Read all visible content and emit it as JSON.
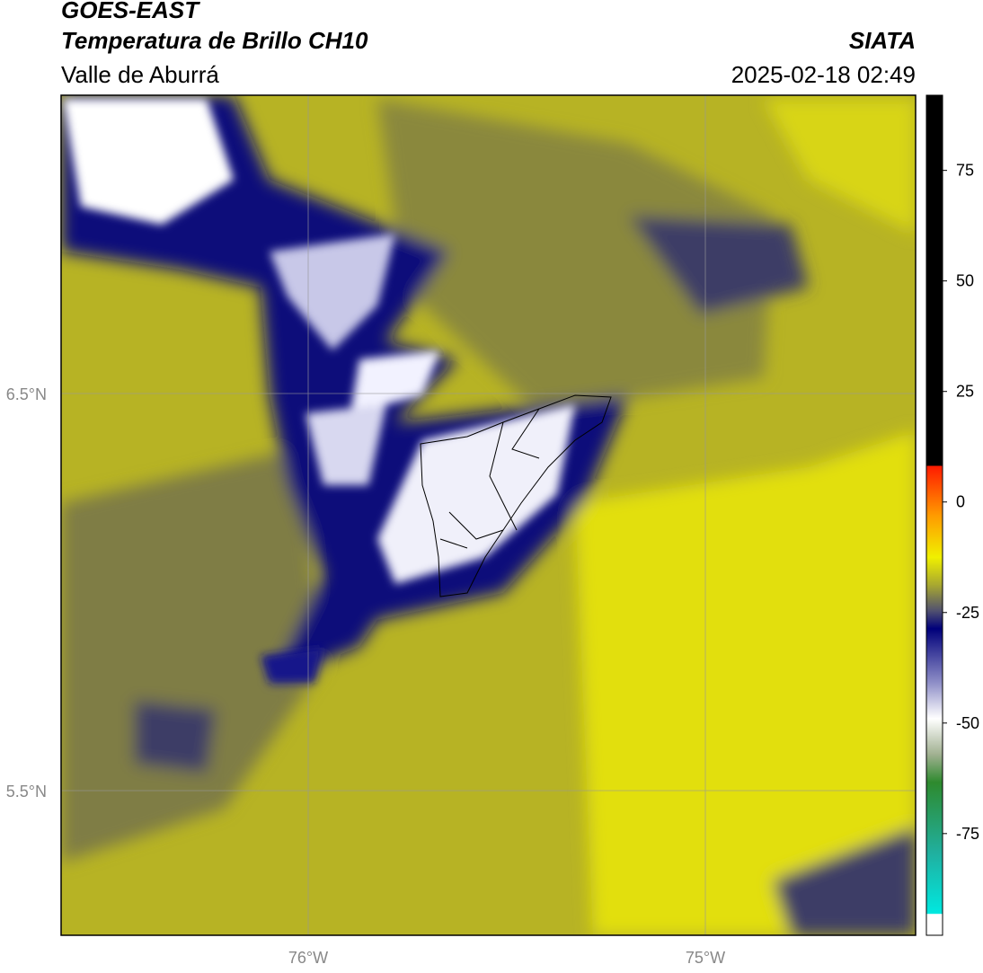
{
  "header": {
    "title": "GOES-EAST",
    "subtitle": "Temperatura de Brillo CH10",
    "region": "Valle de Aburrá",
    "source": "SIATA",
    "datetime": "2025-02-18 02:49"
  },
  "map": {
    "lat_labels": [
      "6.5°N",
      "5.5°N"
    ],
    "lon_labels": [
      "76°W",
      "75°W"
    ]
  },
  "colorbar": {
    "lim": [
      -98,
      92
    ],
    "ticks": [
      75,
      50,
      25,
      0,
      -25,
      -50,
      -75
    ]
  }
}
